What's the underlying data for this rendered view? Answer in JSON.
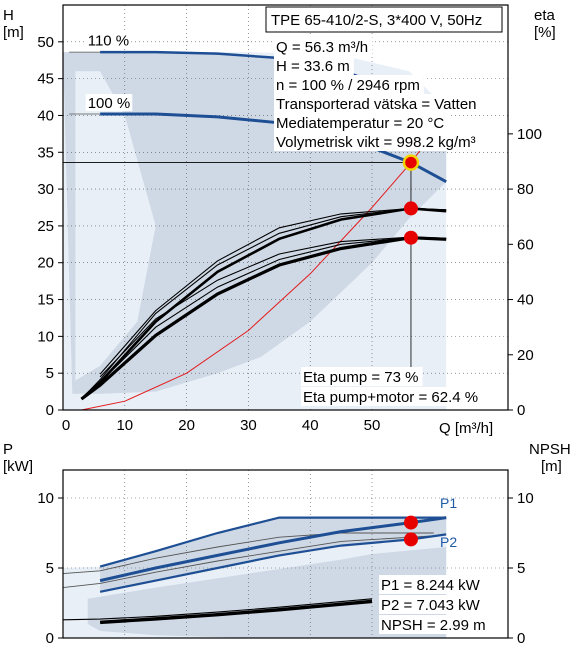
{
  "chart_data": [
    {
      "type": "line",
      "title": "TPE 65-410/2-S, 3*400 V, 50Hz",
      "y_left_label": [
        "H",
        "[m]"
      ],
      "y_right_label": [
        "eta",
        "[%]"
      ],
      "xlabel": "Q [m³/h]",
      "xlim": [
        0,
        72
      ],
      "x_ticks": [
        0,
        10,
        20,
        30,
        40,
        50
      ],
      "ylim": [
        0,
        55
      ],
      "y_ticks": [
        0,
        5,
        10,
        15,
        20,
        25,
        30,
        35,
        40,
        45,
        50
      ],
      "y2lim": [
        0,
        100
      ],
      "y2_ticks": [
        0,
        20,
        40,
        60,
        80,
        100
      ],
      "grid": true,
      "speed_labels": [
        {
          "text": "110 %",
          "x": 4,
          "y": 49.5
        },
        {
          "text": "100 %",
          "x": 4,
          "y": 41.0
        }
      ],
      "info_box": [
        "Q = 56.3 m³/h",
        "H = 33.6 m",
        "n = 100 % / 2946 rpm",
        "Transporterad vätska = Vatten",
        "Mediatemperatur = 20 °C",
        "Volymetrisk vikt = 998.2 kg/m³"
      ],
      "annotations": [
        "Eta pump = 73 %",
        "Eta pump+motor = 62.4 %"
      ],
      "head_110": {
        "x": [
          1,
          6,
          15,
          25,
          35,
          45,
          55,
          62
        ],
        "y": [
          48.6,
          48.6,
          48.6,
          48.4,
          47.8,
          46.2,
          43.0,
          38.5
        ]
      },
      "head_100": {
        "x": [
          1,
          6,
          15,
          25,
          35,
          45,
          52,
          56.3,
          62
        ],
        "y": [
          40.2,
          40.2,
          40.2,
          39.8,
          39.0,
          37.2,
          35.0,
          33.6,
          31.0
        ]
      },
      "head_envelope": {
        "x": [
          0,
          3,
          8,
          15,
          25,
          35,
          45,
          55,
          62,
          62,
          56,
          50,
          40,
          32,
          25,
          15,
          6,
          1.5,
          0
        ],
        "y": [
          48.6,
          48.6,
          48.6,
          48.6,
          48.4,
          47.8,
          46.2,
          43,
          38.5,
          31,
          26,
          20,
          12,
          7.2,
          5,
          2.5,
          2.2,
          2.2,
          48.6
        ]
      },
      "eta_pump_band": [
        {
          "x": [
            3,
            6,
            15,
            25,
            35,
            45,
            56.3,
            62
          ],
          "y": [
            4,
            10,
            32,
            50,
            62,
            69,
            73,
            72
          ]
        },
        {
          "x": [
            3,
            6,
            15,
            25,
            35,
            45,
            56.3,
            62
          ],
          "y": [
            4,
            11,
            35,
            52.5,
            64,
            70,
            73,
            72.5
          ]
        },
        {
          "x": [
            6,
            15,
            25,
            35,
            45,
            56.3,
            62
          ],
          "y": [
            13,
            36,
            54,
            66,
            71,
            73,
            72.5
          ]
        }
      ],
      "eta_total_band": [
        {
          "x": [
            3,
            6,
            15,
            25,
            35,
            45,
            56.3,
            62
          ],
          "y": [
            4,
            9,
            27,
            42,
            52.5,
            58.5,
            62.4,
            61.8
          ]
        },
        {
          "x": [
            3,
            6,
            15,
            25,
            35,
            45,
            56.3,
            62
          ],
          "y": [
            4,
            10,
            30,
            44.5,
            54.5,
            60,
            62.5,
            62
          ]
        },
        {
          "x": [
            6,
            15,
            25,
            35,
            45,
            56.3,
            62
          ],
          "y": [
            12,
            33,
            47,
            56.5,
            61,
            62.6,
            62.2
          ]
        }
      ],
      "system_curve": {
        "x": [
          3,
          10,
          20,
          30,
          40,
          50,
          56.3,
          62
        ],
        "y": [
          0,
          1.2,
          5,
          10.8,
          18.5,
          27.5,
          33.6,
          40
        ]
      },
      "operating_points": [
        {
          "name": "H",
          "x": 56.3,
          "y": 33.6
        },
        {
          "name": "Eta pump",
          "x": 56.3,
          "y2": 73
        },
        {
          "name": "Eta pump+motor",
          "x": 56.3,
          "y2": 62.4
        }
      ]
    },
    {
      "type": "line",
      "y_left_label": [
        "P",
        "[kW]"
      ],
      "y_right_label": [
        "NPSH",
        "[m]"
      ],
      "xlim": [
        0,
        72
      ],
      "x_ticks": [
        0,
        10,
        20,
        30,
        40,
        50
      ],
      "ylim": [
        0,
        12
      ],
      "y_ticks": [
        0,
        5,
        10
      ],
      "y2_ticks": [
        0,
        5,
        10
      ],
      "grid": true,
      "series_labels": [
        {
          "text": "P1",
          "x": 61,
          "y": 9.3
        },
        {
          "text": "P2",
          "x": 61,
          "y": 6.5
        }
      ],
      "info_box": [
        "P1 = 8.244 kW",
        "P2 = 7.043 kW",
        "NPSH = 2.99 m"
      ],
      "p1_max": {
        "x": [
          6,
          15,
          25,
          35,
          39,
          50,
          62
        ],
        "y": [
          5.1,
          6.2,
          7.5,
          8.6,
          8.6,
          8.6,
          8.6
        ]
      },
      "p1": {
        "x": [
          6,
          15,
          25,
          35,
          45,
          56.3,
          62
        ],
        "y": [
          4.1,
          5.0,
          5.9,
          6.8,
          7.6,
          8.244,
          8.6
        ]
      },
      "p2": {
        "x": [
          6,
          15,
          25,
          35,
          45,
          56.3,
          62
        ],
        "y": [
          3.3,
          4.1,
          5.0,
          5.9,
          6.6,
          7.043,
          7.4
        ]
      },
      "thin_p1": {
        "x": [
          0,
          6,
          15,
          25,
          35,
          45,
          60
        ],
        "y": [
          4.6,
          4.8,
          5.7,
          6.5,
          7.2,
          7.5,
          7.5
        ]
      },
      "thin_p2": {
        "x": [
          0,
          6,
          15,
          25,
          35,
          45,
          60
        ],
        "y": [
          3.6,
          3.9,
          4.7,
          5.5,
          6.2,
          6.9,
          7.3
        ]
      },
      "band_envelope": {
        "x": [
          6,
          15,
          25,
          35,
          39,
          50,
          62,
          62,
          56,
          45,
          35,
          25,
          15,
          6
        ],
        "y": [
          5.1,
          6.2,
          7.5,
          8.6,
          8.6,
          8.6,
          8.6,
          7.4,
          7.0,
          6.6,
          5.9,
          5.0,
          4.1,
          3.3
        ]
      },
      "npsh_curves": [
        {
          "x": [
            6,
            15,
            25,
            35,
            45,
            50
          ],
          "y": [
            1.1,
            1.35,
            1.65,
            2.0,
            2.4,
            2.6
          ]
        },
        {
          "x": [
            6,
            15,
            25,
            35,
            45,
            50
          ],
          "y": [
            1.2,
            1.45,
            1.75,
            2.1,
            2.5,
            2.7
          ]
        },
        {
          "x": [
            0,
            6,
            15,
            25,
            35,
            45,
            50
          ],
          "y": [
            1.3,
            1.35,
            1.55,
            1.85,
            2.2,
            2.6,
            2.8
          ]
        }
      ],
      "operating_points": [
        {
          "name": "P1",
          "x": 56.3,
          "y": 8.244
        },
        {
          "name": "P2",
          "x": 56.3,
          "y": 7.043
        }
      ]
    }
  ],
  "colors": {
    "band": "#cfd9e6",
    "light_band": "#e8eff7",
    "curve": "#1e4f94",
    "black": "#000000",
    "system": "#e21b1b",
    "point": "#e60000",
    "point_ring": "#f2d500",
    "grid": "#555555"
  }
}
